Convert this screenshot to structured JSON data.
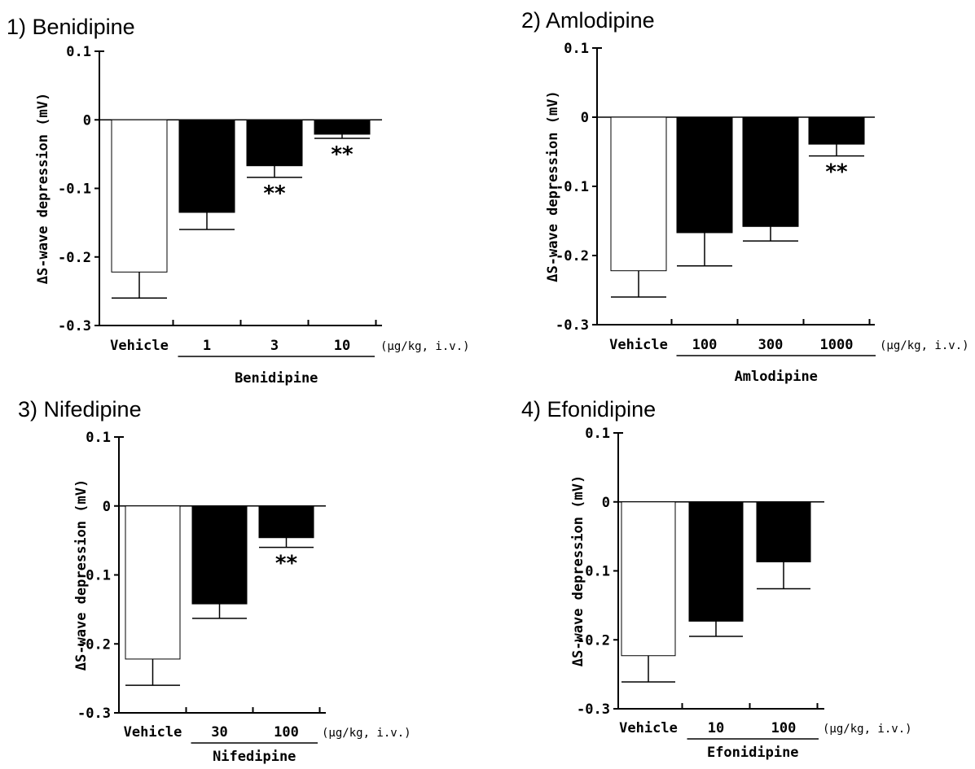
{
  "chart_data": [
    {
      "type": "bar",
      "title": "1) Benidipine",
      "ylabel": "ΔS-wave depression (mV)",
      "y_ticks": [
        "0.1",
        "0",
        "-0.1",
        "-0.2",
        "-0.3"
      ],
      "ylim": [
        -0.3,
        0.1
      ],
      "categories": [
        "Vehicle",
        "1",
        "3",
        "10"
      ],
      "values": [
        -0.222,
        -0.135,
        -0.067,
        -0.021
      ],
      "errors": [
        0.038,
        0.025,
        0.017,
        0.006
      ],
      "significance": [
        "",
        "",
        "**",
        "**"
      ],
      "bar_colors": [
        "#ffffff",
        "#000000",
        "#000000",
        "#000000"
      ],
      "group_label": "Benidipine",
      "unit_label": "(μg/kg, i.v.)"
    },
    {
      "type": "bar",
      "title": "2) Amlodipine",
      "ylabel": "ΔS-wave depression (mV)",
      "y_ticks": [
        "0.1",
        "0",
        "-0.1",
        "-0.2",
        "-0.3"
      ],
      "ylim": [
        -0.3,
        0.1
      ],
      "categories": [
        "Vehicle",
        "100",
        "300",
        "1000"
      ],
      "values": [
        -0.222,
        -0.167,
        -0.158,
        -0.039
      ],
      "errors": [
        0.038,
        0.048,
        0.021,
        0.017
      ],
      "significance": [
        "",
        "",
        "",
        "**"
      ],
      "bar_colors": [
        "#ffffff",
        "#000000",
        "#000000",
        "#000000"
      ],
      "group_label": "Amlodipine",
      "unit_label": "(μg/kg, i.v.)"
    },
    {
      "type": "bar",
      "title": "3) Nifedipine",
      "ylabel": "ΔS-wave depression (mV)",
      "y_ticks": [
        "0.1",
        "0",
        "-0.1",
        "-0.2",
        "-0.3"
      ],
      "ylim": [
        -0.3,
        0.1
      ],
      "categories": [
        "Vehicle",
        "30",
        "100"
      ],
      "values": [
        -0.222,
        -0.142,
        -0.046
      ],
      "errors": [
        0.038,
        0.021,
        0.014
      ],
      "significance": [
        "",
        "",
        "**"
      ],
      "bar_colors": [
        "#ffffff",
        "#000000",
        "#000000"
      ],
      "group_label": "Nifedipine",
      "unit_label": "(μg/kg, i.v.)"
    },
    {
      "type": "bar",
      "title": "4) Efonidipine",
      "ylabel": "ΔS-wave depression (mV)",
      "y_ticks": [
        "0.1",
        "0",
        "-0.1",
        "-0.2",
        "-0.3"
      ],
      "ylim": [
        -0.3,
        0.1
      ],
      "categories": [
        "Vehicle",
        "10",
        "100"
      ],
      "values": [
        -0.223,
        -0.173,
        -0.087
      ],
      "errors": [
        0.038,
        0.022,
        0.039
      ],
      "significance": [
        "",
        "",
        ""
      ],
      "bar_colors": [
        "#ffffff",
        "#000000",
        "#000000"
      ],
      "group_label": "Efonidipine",
      "unit_label": "(μg/kg, i.v.)"
    }
  ]
}
